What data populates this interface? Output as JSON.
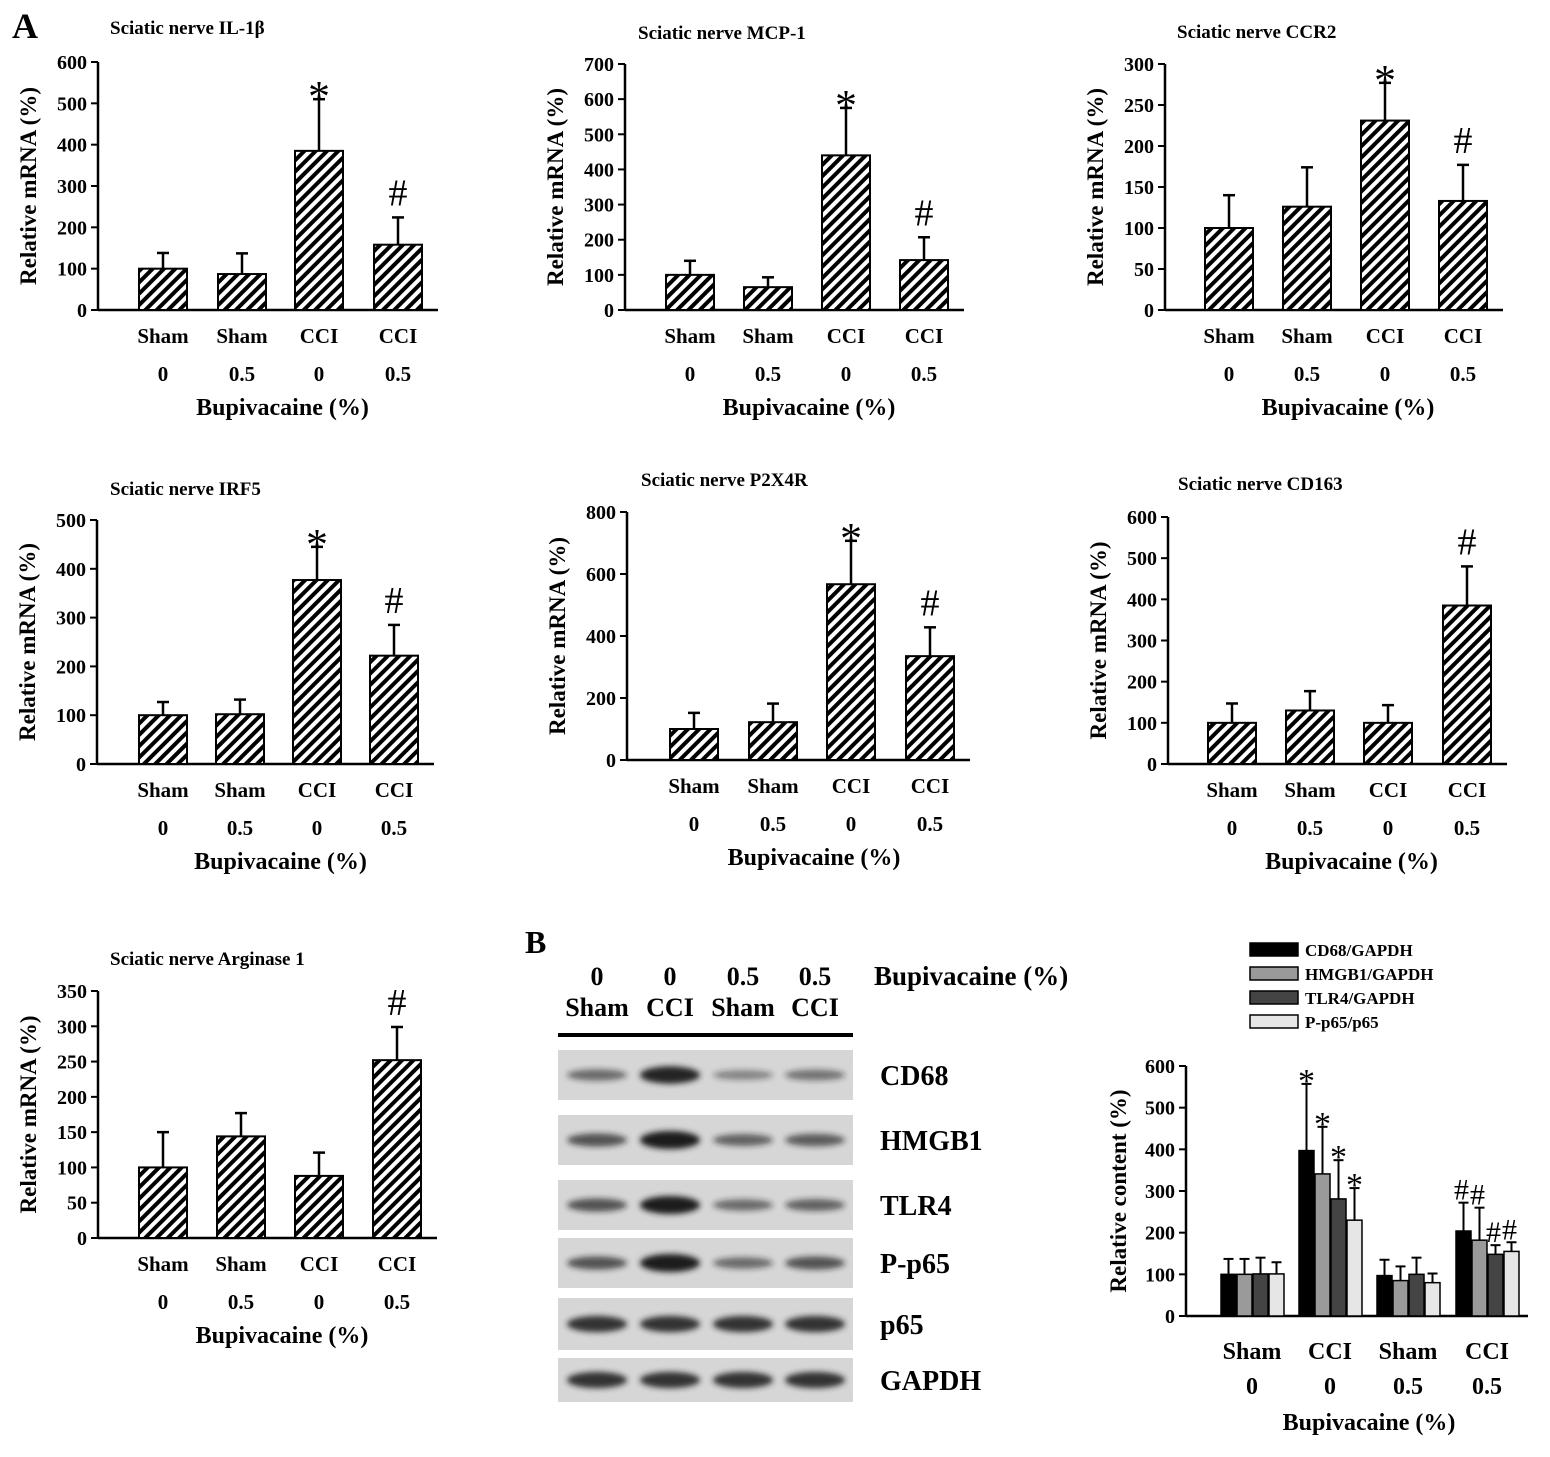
{
  "panel_labels": [
    "A",
    "B"
  ],
  "colors": {
    "ink": "#000000",
    "bar_fill": "hatched",
    "blot_band": "#1e1e1e",
    "blot_background": "#d4d4d4"
  },
  "chart_data": [
    {
      "id": "il1b",
      "type": "bar",
      "title": "Sciatic nerve IL-1β",
      "ylabel": "Relative mRNA (%)",
      "xlabel": "Bupivacaine (%)",
      "categories": [
        "Sham",
        "Sham",
        "CCI",
        "CCI"
      ],
      "subcategories": [
        "0",
        "0.5",
        "0",
        "0.5"
      ],
      "ylim": [
        0,
        600
      ],
      "yticks": [
        0,
        100,
        200,
        300,
        400,
        500,
        600
      ],
      "values": [
        100,
        87,
        385,
        158
      ],
      "errors": [
        38,
        50,
        125,
        66
      ],
      "annotations": [
        "",
        "",
        "*",
        "#"
      ]
    },
    {
      "id": "mcp1",
      "type": "bar",
      "title": "Sciatic nerve MCP-1",
      "ylabel": "Relative mRNA (%)",
      "xlabel": "Bupivacaine (%)",
      "categories": [
        "Sham",
        "Sham",
        "CCI",
        "CCI"
      ],
      "subcategories": [
        "0",
        "0.5",
        "0",
        "0.5"
      ],
      "ylim": [
        0,
        700
      ],
      "yticks": [
        0,
        100,
        200,
        300,
        400,
        500,
        600,
        700
      ],
      "values": [
        100,
        65,
        440,
        142
      ],
      "errors": [
        40,
        28,
        135,
        65
      ],
      "annotations": [
        "",
        "",
        "*",
        "#"
      ]
    },
    {
      "id": "ccr2",
      "type": "bar",
      "title": "Sciatic nerve CCR2",
      "ylabel": "Relative mRNA (%)",
      "xlabel": "Bupivacaine (%)",
      "categories": [
        "Sham",
        "Sham",
        "CCI",
        "CCI"
      ],
      "subcategories": [
        "0",
        "0.5",
        "0",
        "0.5"
      ],
      "ylim": [
        0,
        300
      ],
      "yticks": [
        0,
        50,
        100,
        150,
        200,
        250,
        300
      ],
      "values": [
        100,
        126,
        231,
        133
      ],
      "errors": [
        40,
        48,
        46,
        44
      ],
      "annotations": [
        "",
        "",
        "*",
        "#"
      ]
    },
    {
      "id": "irf5",
      "type": "bar",
      "title": "Sciatic nerve IRF5",
      "ylabel": "Relative mRNA (%)",
      "xlabel": "Bupivacaine (%)",
      "categories": [
        "Sham",
        "Sham",
        "CCI",
        "CCI"
      ],
      "subcategories": [
        "0",
        "0.5",
        "0",
        "0.5"
      ],
      "ylim": [
        0,
        500
      ],
      "yticks": [
        0,
        100,
        200,
        300,
        400,
        500
      ],
      "values": [
        100,
        102,
        377,
        222
      ],
      "errors": [
        27,
        30,
        68,
        63
      ],
      "annotations": [
        "",
        "",
        "*",
        "#"
      ]
    },
    {
      "id": "p2x4r",
      "type": "bar",
      "title": "Sciatic nerve P2X4R",
      "ylabel": "Relative mRNA (%)",
      "xlabel": "Bupivacaine (%)",
      "categories": [
        "Sham",
        "Sham",
        "CCI",
        "CCI"
      ],
      "subcategories": [
        "0",
        "0.5",
        "0",
        "0.5"
      ],
      "ylim": [
        0,
        800
      ],
      "yticks": [
        0,
        200,
        400,
        600,
        800
      ],
      "values": [
        100,
        122,
        567,
        335
      ],
      "errors": [
        52,
        60,
        140,
        93
      ],
      "annotations": [
        "",
        "",
        "*",
        "#"
      ]
    },
    {
      "id": "cd163",
      "type": "bar",
      "title": "Sciatic nerve CD163",
      "ylabel": "Relative mRNA (%)",
      "xlabel": "Bupivacaine (%)",
      "categories": [
        "Sham",
        "Sham",
        "CCI",
        "CCI"
      ],
      "subcategories": [
        "0",
        "0.5",
        "0",
        "0.5"
      ],
      "ylim": [
        0,
        600
      ],
      "yticks": [
        0,
        100,
        200,
        300,
        400,
        500,
        600
      ],
      "values": [
        100,
        130,
        100,
        385
      ],
      "errors": [
        47,
        47,
        43,
        95
      ],
      "annotations": [
        "",
        "",
        "",
        "#"
      ]
    },
    {
      "id": "arg1",
      "type": "bar",
      "title": "Sciatic nerve Arginase 1",
      "ylabel": "Relative mRNA (%)",
      "xlabel": "Bupivacaine (%)",
      "categories": [
        "Sham",
        "Sham",
        "CCI",
        "CCI"
      ],
      "subcategories": [
        "0",
        "0.5",
        "0",
        "0.5"
      ],
      "ylim": [
        0,
        350
      ],
      "yticks": [
        0,
        50,
        100,
        150,
        200,
        250,
        300,
        350
      ],
      "values": [
        100,
        144,
        88,
        252
      ],
      "errors": [
        50,
        33,
        33,
        47
      ],
      "annotations": [
        "",
        "",
        "",
        "#"
      ]
    },
    {
      "id": "relative_content",
      "type": "bar",
      "ylabel": "Relative content (%)",
      "xlabel": "Bupivacaine (%)",
      "categories": [
        "Sham",
        "CCI",
        "Sham",
        "CCI"
      ],
      "subcategories": [
        "0",
        "0",
        "0.5",
        "0.5"
      ],
      "ylim": [
        0,
        600
      ],
      "yticks": [
        0,
        100,
        200,
        300,
        400,
        500,
        600
      ],
      "legend_position": "top",
      "series": [
        {
          "name": "CD68/GAPDH",
          "fill": "#000000",
          "values": [
            100,
            397,
            97,
            204
          ],
          "errors": [
            37,
            160,
            38,
            68
          ]
        },
        {
          "name": "HMGB1/GAPDH",
          "fill": "#9a9a9a",
          "values": [
            100,
            341,
            85,
            182
          ],
          "errors": [
            37,
            113,
            34,
            78
          ]
        },
        {
          "name": "TLR4/GAPDH",
          "fill": "#444444",
          "values": [
            101,
            281,
            100,
            148
          ],
          "errors": [
            39,
            93,
            40,
            22
          ]
        },
        {
          "name": "P-p65/p65",
          "fill": "#e6e6e6",
          "values": [
            101,
            230,
            80,
            155
          ],
          "errors": [
            28,
            77,
            22,
            22
          ]
        }
      ],
      "annotations": [
        [
          "",
          "",
          "",
          ""
        ],
        [
          "*",
          "*",
          "*",
          "*"
        ],
        [
          "",
          "",
          "",
          ""
        ],
        [
          "#",
          "#",
          "#",
          "#"
        ]
      ]
    }
  ],
  "blot": {
    "bupivacaine_label": "Bupivacaine (%)",
    "lanes": [
      {
        "dose": "0",
        "group": "Sham"
      },
      {
        "dose": "0",
        "group": "CCI"
      },
      {
        "dose": "0.5",
        "group": "Sham"
      },
      {
        "dose": "0.5",
        "group": "CCI"
      }
    ],
    "rows": [
      {
        "name": "CD68",
        "intensity": [
          0.45,
          0.95,
          0.3,
          0.4
        ]
      },
      {
        "name": "HMGB1",
        "intensity": [
          0.6,
          1.0,
          0.5,
          0.55
        ]
      },
      {
        "name": "TLR4",
        "intensity": [
          0.6,
          1.0,
          0.45,
          0.5
        ]
      },
      {
        "name": "P-p65",
        "intensity": [
          0.6,
          1.0,
          0.45,
          0.6
        ]
      },
      {
        "name": "p65",
        "intensity": [
          0.85,
          0.85,
          0.85,
          0.85
        ]
      },
      {
        "name": "GAPDH",
        "intensity": [
          0.85,
          0.85,
          0.85,
          0.85
        ]
      }
    ]
  }
}
